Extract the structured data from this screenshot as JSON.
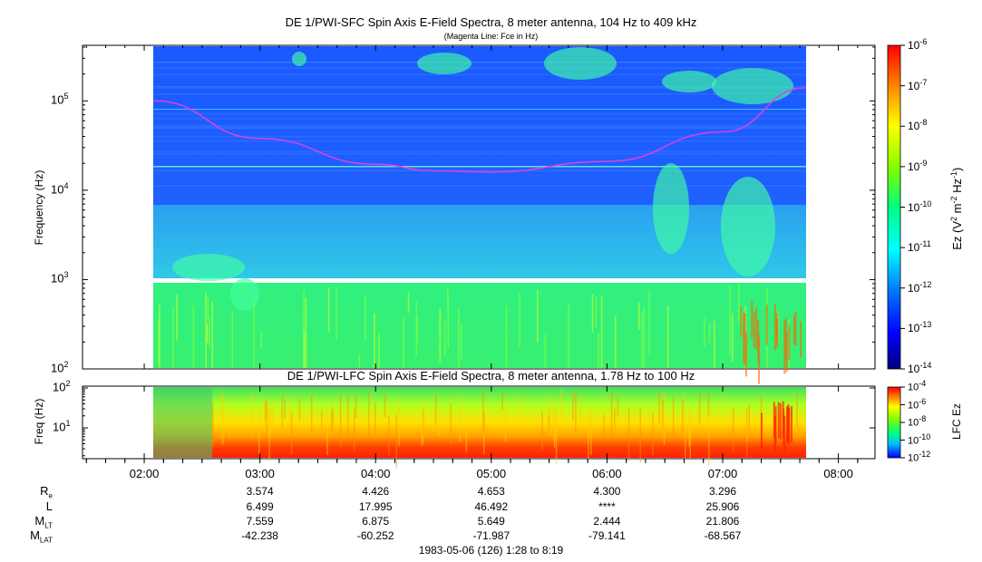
{
  "chart_data": [
    {
      "type": "heatmap",
      "title": "DE 1/PWI-SFC  Spin Axis E-Field Spectra, 8 meter antenna, 104 Hz to 409 kHz",
      "subtitle": "(Magenta Line: Fce in Hz)",
      "ylabel": "Frequency (Hz)",
      "yscale": "log",
      "ylim": [
        100,
        409000
      ],
      "ytick_labels": [
        {
          "base": "10",
          "exp": "2"
        },
        {
          "base": "10",
          "exp": "3"
        },
        {
          "base": "10",
          "exp": "4"
        },
        {
          "base": "10",
          "exp": "5"
        }
      ],
      "xlim": [
        "01:28",
        "08:19"
      ],
      "data_range": [
        "02:05",
        "07:43"
      ],
      "colorbar": {
        "label": "Ez (V² m⁻² Hz⁻¹)",
        "label_main": "Ez (V",
        "label_sup1": "2",
        "label_mid": " m",
        "label_sup2": "-2",
        "label_mid2": " Hz",
        "label_sup3": "-1",
        "label_end": ")",
        "scale": "log",
        "range": [
          1e-14,
          1e-06
        ],
        "tick_labels": [
          {
            "base": "10",
            "exp": "-6"
          },
          {
            "base": "10",
            "exp": "-7"
          },
          {
            "base": "10",
            "exp": "-8"
          },
          {
            "base": "10",
            "exp": "-9"
          },
          {
            "base": "10",
            "exp": "-10"
          },
          {
            "base": "10",
            "exp": "-11"
          },
          {
            "base": "10",
            "exp": "-12"
          },
          {
            "base": "10",
            "exp": "-13"
          },
          {
            "base": "10",
            "exp": "-14"
          }
        ]
      },
      "fce_line": {
        "color": "#e040e0",
        "times": [
          "02:05",
          "03:00",
          "04:00",
          "04:30",
          "05:00",
          "06:00",
          "07:00",
          "07:43"
        ],
        "values_hz": [
          100000,
          38000,
          19500,
          16500,
          16000,
          21000,
          45000,
          140000
        ]
      }
    },
    {
      "type": "heatmap",
      "title": "DE 1/PWI-LFC  Spin Axis E-Field Spectra, 8 meter antenna, 1.78 Hz to 100 Hz",
      "ylabel": "Freq (Hz)",
      "yscale": "log",
      "ylim": [
        1.78,
        100
      ],
      "ytick_labels": [
        {
          "base": "10",
          "exp": "2"
        },
        {
          "base": "10",
          "exp": "1"
        }
      ],
      "colorbar": {
        "label": "LFC Ez",
        "scale": "log",
        "range": [
          1e-12,
          0.0001
        ],
        "tick_labels": [
          {
            "base": "10",
            "exp": "-4"
          },
          {
            "base": "10",
            "exp": "-6"
          },
          {
            "base": "10",
            "exp": "-8"
          },
          {
            "base": "10",
            "exp": "-10"
          },
          {
            "base": "10",
            "exp": "-12"
          }
        ]
      }
    }
  ],
  "x_axis": {
    "tick_labels": [
      "02:00",
      "03:00",
      "04:00",
      "05:00",
      "06:00",
      "07:00",
      "08:00"
    ]
  },
  "ephemeris": {
    "rows": [
      {
        "label": "R",
        "sub": "e",
        "values": [
          "3.574",
          "4.426",
          "4.653",
          "4.300",
          "3.296"
        ]
      },
      {
        "label": "L",
        "sub": "",
        "values": [
          "6.499",
          "17.995",
          "46.492",
          "****",
          "25.906"
        ]
      },
      {
        "label": "M",
        "sub": "LT",
        "values": [
          "7.559",
          "6.875",
          "5.649",
          "2.444",
          "21.806"
        ]
      },
      {
        "label": "M",
        "sub": "LAT",
        "values": [
          "-42.238",
          "-60.252",
          "-71.987",
          "-79.141",
          "-68.567"
        ]
      }
    ]
  },
  "footer": "1983-05-06 (126) 1:28 to 8:19"
}
